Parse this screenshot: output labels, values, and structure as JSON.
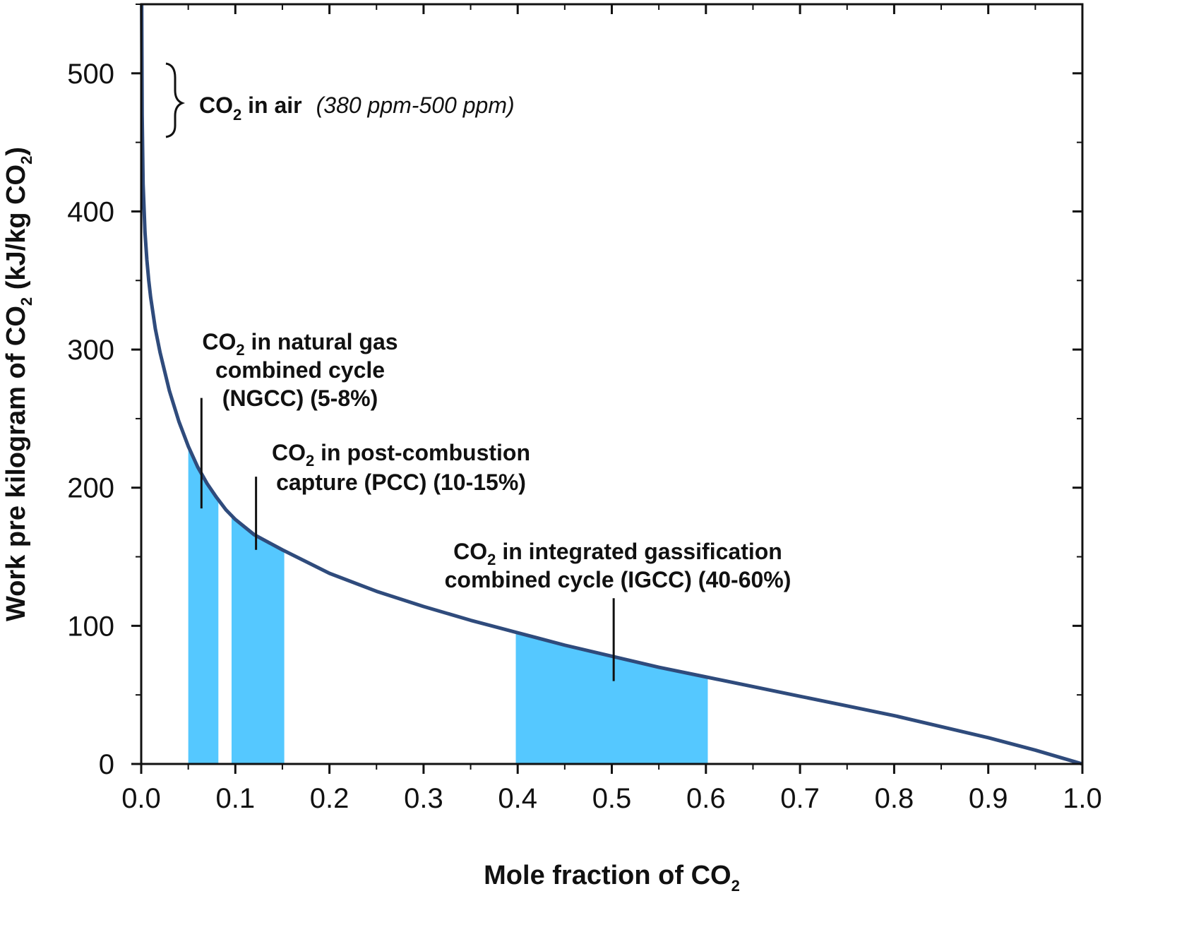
{
  "chart_data": {
    "type": "area",
    "xlabel": {
      "main": "Mole fraction of CO",
      "sub": "2"
    },
    "ylabel": {
      "part1": "Work pre kilogram of CO",
      "sub1": "2",
      "part2": " (kJ/kg CO",
      "sub2": "2",
      "part3": ")"
    },
    "xlim": [
      0,
      1.0
    ],
    "ylim": [
      0,
      550
    ],
    "x_ticks": [
      "0.0",
      "0.1",
      "0.2",
      "0.3",
      "0.4",
      "0.5",
      "0.6",
      "0.7",
      "0.8",
      "0.9",
      "1.0"
    ],
    "x_tick_values": [
      0,
      0.1,
      0.2,
      0.3,
      0.4,
      0.5,
      0.6,
      0.7,
      0.8,
      0.9,
      1.0
    ],
    "y_ticks": [
      "0",
      "100",
      "200",
      "300",
      "400",
      "500"
    ],
    "y_tick_values": [
      0,
      100,
      200,
      300,
      400,
      500
    ],
    "grid": false,
    "series": [
      {
        "color": "#2f4b7c",
        "x": [
          0.0005,
          0.001,
          0.002,
          0.004,
          0.006,
          0.008,
          0.01,
          0.015,
          0.02,
          0.03,
          0.04,
          0.05,
          0.06,
          0.07,
          0.08,
          0.09,
          0.1,
          0.12,
          0.15,
          0.2,
          0.25,
          0.3,
          0.35,
          0.4,
          0.45,
          0.5,
          0.55,
          0.6,
          0.65,
          0.7,
          0.75,
          0.8,
          0.85,
          0.9,
          0.95,
          0.98,
          1.0
        ],
        "y": [
          550,
          470,
          420,
          385,
          365,
          350,
          338,
          315,
          298,
          270,
          248,
          230,
          215,
          203,
          193,
          184,
          177,
          166,
          155,
          138,
          125,
          114,
          104,
          95,
          86,
          78,
          70,
          63,
          56,
          49,
          42,
          35,
          27,
          19,
          10,
          4,
          0
        ]
      }
    ],
    "shaded_regions": [
      {
        "x0": 0.05,
        "x1": 0.082,
        "color": "#55c8ff"
      },
      {
        "x0": 0.096,
        "x1": 0.152,
        "color": "#55c8ff"
      },
      {
        "x0": 0.398,
        "x1": 0.602,
        "color": "#55c8ff"
      }
    ],
    "annotations": {
      "air": {
        "bold": "CO",
        "sub": "2",
        "bold_tail": " in air",
        "italic": "(380 ppm-500 ppm)"
      },
      "ngcc": {
        "line1_prefix": "CO",
        "line1_sub": "2",
        "line1_rest": " in natural gas",
        "line2": "combined cycle",
        "line3": "(NGCC) (5-8%)",
        "pointer_x": 0.064,
        "pointer_y_top": 265,
        "pointer_y_bottom": 185
      },
      "pcc": {
        "line1_prefix": "CO",
        "line1_sub": "2",
        "line1_rest": " in post-combustion",
        "line2": "capture (PCC) (10-15%)",
        "pointer_x": 0.122,
        "pointer_y_top": 208,
        "pointer_y_bottom": 155
      },
      "igcc": {
        "line1_prefix": "CO",
        "line1_sub": "2",
        "line1_rest": " in integrated gassification",
        "line2": "combined cycle (IGCC) (40-60%)",
        "pointer_x": 0.502,
        "pointer_y_top": 120,
        "pointer_y_bottom": 60
      }
    }
  }
}
